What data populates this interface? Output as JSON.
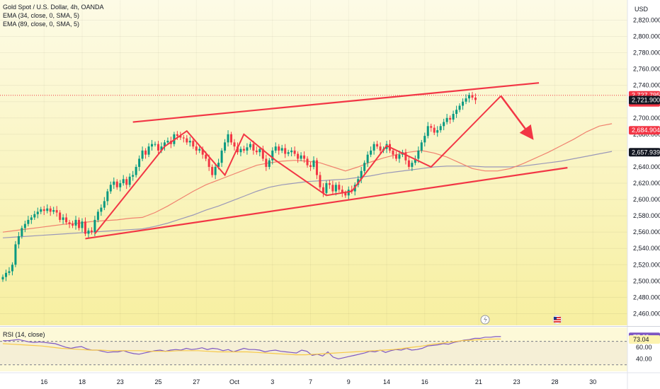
{
  "legend": {
    "title": "Gold Spot / U.S. Dollar, 4h, OANDA",
    "ema34": "EMA (34, close, 0, SMA, 5)",
    "ema89": "EMA (89, close, 0, SMA, 5)",
    "rsi": "RSI (14, close)"
  },
  "currency": "USD",
  "colors": {
    "up": "#089981",
    "down": "#f23645",
    "drawing": "#f23645",
    "ema34": "#f0826f",
    "ema89": "#9a98b8",
    "rsi": "#7e57c2",
    "bg_top": "#fdfbe6",
    "bg_bottom": "#f7efa0"
  },
  "price_badges": [
    {
      "label": "2,727.795",
      "sub": "01:08:10",
      "value": 2727.795,
      "bg": "#f23645",
      "fg": "#ffffff"
    },
    {
      "label": "2,721.900",
      "value": 2721.9,
      "bg": "#131722",
      "fg": "#ffffff"
    },
    {
      "label": "2,684.904",
      "value": 2684.904,
      "bg": "#f23645",
      "fg": "#ffffff"
    },
    {
      "label": "2,657.939",
      "value": 2657.939,
      "bg": "#131722",
      "fg": "#ffffff"
    }
  ],
  "rsi_badges": [
    {
      "label": "77.60",
      "value": 77.6,
      "bg": "#7e57c2",
      "fg": "#ffffff"
    },
    {
      "label": "73.04",
      "value": 73.04,
      "bg": "#fdf3b0",
      "fg": "#131722"
    }
  ],
  "chart_data": {
    "type": "candlestick",
    "title": "Gold Spot / U.S. Dollar, 4h, OANDA",
    "y_ticks": [
      "2,460.000",
      "2,480.000",
      "2,500.000",
      "2,520.000",
      "2,540.000",
      "2,560.000",
      "2,580.000",
      "2,600.000",
      "2,620.000",
      "2,640.000",
      "2,660.000",
      "2,680.000",
      "2,700.000",
      "2,720.000",
      "2,740.000",
      "2,760.000",
      "2,780.000",
      "2,800.000",
      "2,820.000"
    ],
    "y_tick_values": [
      2460,
      2480,
      2500,
      2520,
      2540,
      2560,
      2580,
      2600,
      2620,
      2640,
      2660,
      2680,
      2700,
      2720,
      2740,
      2760,
      2780,
      2800,
      2820
    ],
    "ylim": [
      2450,
      2836
    ],
    "x_ticks": [
      {
        "label": "16",
        "bar": 13
      },
      {
        "label": "18",
        "bar": 25
      },
      {
        "label": "23",
        "bar": 37
      },
      {
        "label": "25",
        "bar": 49
      },
      {
        "label": "27",
        "bar": 61
      },
      {
        "label": "Oct",
        "bar": 73
      },
      {
        "label": "3",
        "bar": 85
      },
      {
        "label": "7",
        "bar": 97
      },
      {
        "label": "9",
        "bar": 109
      },
      {
        "label": "14",
        "bar": 121
      },
      {
        "label": "16",
        "bar": 133
      },
      {
        "label": "21",
        "bar": 150
      },
      {
        "label": "23",
        "bar": 162
      },
      {
        "label": "28",
        "bar": 174
      },
      {
        "label": "30",
        "bar": 186
      }
    ],
    "xlim": [
      0,
      196
    ],
    "rsi_ticks": [
      "60.00",
      "40.00"
    ],
    "rsi_tick_values": [
      60,
      40
    ],
    "rsi_lim": [
      20,
      90
    ],
    "rsi_levels": [
      70,
      30
    ],
    "closes": [
      2505,
      2510,
      2512,
      2520,
      2545,
      2555,
      2565,
      2570,
      2575,
      2578,
      2582,
      2585,
      2588,
      2586,
      2589,
      2585,
      2587,
      2584,
      2575,
      2578,
      2572,
      2570,
      2568,
      2575,
      2565,
      2573,
      2558,
      2562,
      2560,
      2575,
      2585,
      2590,
      2598,
      2610,
      2618,
      2622,
      2615,
      2620,
      2625,
      2618,
      2628,
      2630,
      2640,
      2650,
      2660,
      2655,
      2665,
      2668,
      2668,
      2660,
      2665,
      2670,
      2672,
      2668,
      2680,
      2678,
      2676,
      2675,
      2670,
      2672,
      2665,
      2660,
      2662,
      2655,
      2650,
      2640,
      2630,
      2640,
      2645,
      2660,
      2670,
      2680,
      2670,
      2665,
      2658,
      2662,
      2660,
      2664,
      2668,
      2660,
      2658,
      2662,
      2650,
      2640,
      2648,
      2660,
      2665,
      2660,
      2663,
      2656,
      2658,
      2660,
      2656,
      2650,
      2654,
      2650,
      2642,
      2640,
      2648,
      2630,
      2615,
      2608,
      2620,
      2618,
      2610,
      2618,
      2612,
      2608,
      2605,
      2612,
      2610,
      2618,
      2625,
      2635,
      2645,
      2655,
      2660,
      2668,
      2665,
      2660,
      2662,
      2668,
      2660,
      2655,
      2650,
      2655,
      2658,
      2648,
      2640,
      2645,
      2650,
      2660,
      2670,
      2678,
      2690,
      2688,
      2682,
      2685,
      2690,
      2695,
      2700,
      2698,
      2705,
      2710,
      2715,
      2720,
      2724,
      2728,
      2725,
      2722
    ],
    "ema34": [
      2560,
      2562,
      2564,
      2566,
      2568,
      2570,
      2571,
      2573,
      2574,
      2575,
      2577,
      2578,
      2584,
      2592,
      2601,
      2610,
      2618,
      2624,
      2630,
      2636,
      2642,
      2645,
      2647,
      2648,
      2647,
      2645,
      2640,
      2635,
      2640,
      2646,
      2651,
      2655,
      2658,
      2660,
      2657,
      2652,
      2645,
      2638,
      2635,
      2635,
      2638,
      2644,
      2651,
      2658,
      2666,
      2674,
      2683,
      2690,
      2693
    ],
    "ema89": [
      2553,
      2554,
      2555,
      2556,
      2557,
      2558,
      2559,
      2560,
      2561,
      2562,
      2563,
      2564,
      2567,
      2571,
      2576,
      2581,
      2587,
      2592,
      2598,
      2604,
      2610,
      2615,
      2618,
      2620,
      2622,
      2623,
      2624,
      2625,
      2627,
      2629,
      2632,
      2634,
      2636,
      2638,
      2640,
      2641,
      2641,
      2641,
      2640,
      2640,
      2640,
      2641,
      2643,
      2645,
      2647,
      2650,
      2653,
      2656,
      2659
    ],
    "ema_step": 4,
    "rsi_values": [
      71,
      71,
      72,
      73,
      71,
      69,
      68,
      69,
      68,
      67,
      66,
      63,
      60,
      58,
      60,
      61,
      57,
      55,
      55,
      53,
      51,
      52,
      52,
      54,
      51,
      49,
      48,
      50,
      52,
      54,
      55,
      53,
      55,
      56,
      55,
      58,
      56,
      57,
      59,
      56,
      58,
      57,
      54,
      56,
      52,
      55,
      58,
      56,
      56,
      55,
      52,
      54,
      55,
      53,
      52,
      51,
      50,
      55,
      53,
      46,
      48,
      45,
      52,
      43,
      40,
      42,
      44,
      46,
      48,
      50,
      53,
      52,
      55,
      51,
      54,
      56,
      55,
      58,
      55,
      56,
      58,
      62,
      63,
      64,
      66,
      65,
      68,
      70,
      72,
      73,
      75,
      75,
      77,
      77,
      78,
      78
    ],
    "rsi_avg": [
      66,
      65,
      64,
      63,
      62,
      60,
      58,
      57,
      56,
      55,
      55,
      54,
      54,
      54,
      54,
      53,
      53,
      53,
      54,
      54,
      54,
      53,
      52,
      52,
      52,
      52,
      51,
      50,
      49,
      48,
      47,
      47,
      48,
      49,
      50,
      51,
      52,
      53,
      54,
      55,
      56,
      58,
      60,
      62,
      65,
      67,
      69,
      71,
      72,
      73,
      74,
      74
    ],
    "channel": {
      "upper": [
        {
          "bar": 41,
          "price": 2695
        },
        {
          "bar": 169,
          "price": 2743
        }
      ],
      "lower": [
        {
          "bar": 26,
          "price": 2552
        },
        {
          "bar": 178,
          "price": 2639
        }
      ]
    },
    "zigzag": [
      {
        "bar": 29,
        "price": 2558
      },
      {
        "bar": 51,
        "price": 2665
      },
      {
        "bar": 58,
        "price": 2684
      },
      {
        "bar": 70,
        "price": 2630
      },
      {
        "bar": 76,
        "price": 2680
      },
      {
        "bar": 86,
        "price": 2648
      },
      {
        "bar": 102,
        "price": 2605
      },
      {
        "bar": 110,
        "price": 2610
      },
      {
        "bar": 121,
        "price": 2666
      },
      {
        "bar": 135,
        "price": 2640
      },
      {
        "bar": 157,
        "price": 2727
      }
    ],
    "arrow": {
      "from": {
        "bar": 157,
        "price": 2727
      },
      "to": {
        "bar": 166,
        "price": 2680
      }
    }
  },
  "chart_icons": [
    "lightning-icon",
    "us-flag-icon"
  ]
}
